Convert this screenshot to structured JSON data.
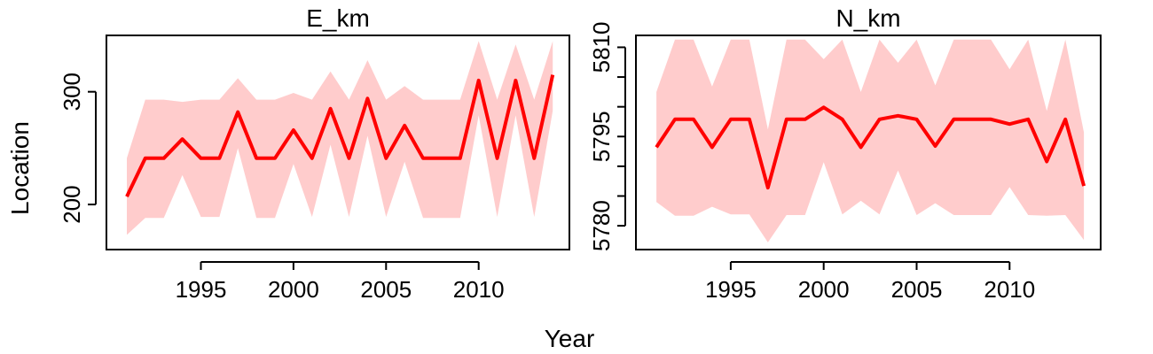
{
  "figure": {
    "xlabel": "Year",
    "ylabel": "Location"
  },
  "chart_data": [
    {
      "type": "line",
      "title": "E_km",
      "xlabel": "Year",
      "ylabel": "Location",
      "xlim": [
        1989.9,
        2014.9
      ],
      "ylim": [
        160,
        350
      ],
      "xticks": [
        1995,
        2000,
        2005,
        2010
      ],
      "yticks": [
        200,
        300
      ],
      "grid": false,
      "band_color": "#ffcccc",
      "line_color": "#ff0000",
      "x": [
        1991,
        1992,
        1993,
        1994,
        1995,
        1996,
        1997,
        1998,
        1999,
        2000,
        2001,
        2002,
        2003,
        2004,
        2005,
        2006,
        2007,
        2008,
        2009,
        2010,
        2011,
        2012,
        2013,
        2014
      ],
      "series": [
        {
          "values": [
            207,
            241,
            241,
            258,
            241,
            241,
            282,
            241,
            241,
            266,
            241,
            285,
            241,
            294,
            241,
            270,
            241,
            241,
            241,
            310,
            241,
            310,
            241,
            315
          ],
          "lower": [
            173,
            188,
            188,
            226,
            189,
            189,
            250,
            188,
            188,
            236,
            189,
            253,
            189,
            261,
            189,
            238,
            188,
            188,
            188,
            279,
            189,
            279,
            189,
            283
          ],
          "upper": [
            241,
            293,
            293,
            291,
            293,
            293,
            312,
            293,
            293,
            299,
            293,
            318,
            293,
            328,
            293,
            305,
            293,
            293,
            293,
            345,
            293,
            342,
            293,
            345
          ]
        }
      ]
    },
    {
      "type": "line",
      "title": "N_km",
      "xlabel": "Year",
      "ylabel": "Location",
      "xlim": [
        1989.9,
        2014.9
      ],
      "ylim": [
        5776,
        5812
      ],
      "xticks": [
        1995,
        2000,
        2005,
        2010
      ],
      "yticks": [
        5780,
        5795,
        5810
      ],
      "minor_yticks": [
        5785,
        5790,
        5800,
        5805
      ],
      "grid": false,
      "band_color": "#ffcccc",
      "line_color": "#ff0000",
      "x": [
        1991,
        1992,
        1993,
        1994,
        1995,
        1996,
        1997,
        1998,
        1999,
        2000,
        2001,
        2002,
        2003,
        2004,
        2005,
        2006,
        2007,
        2008,
        2009,
        2010,
        2011,
        2012,
        2013,
        2014
      ],
      "series": [
        {
          "values": [
            5793.2,
            5797.9,
            5797.9,
            5793.2,
            5797.9,
            5797.9,
            5786.4,
            5797.9,
            5797.9,
            5799.9,
            5797.9,
            5793.2,
            5797.9,
            5798.5,
            5797.9,
            5793.4,
            5797.9,
            5797.9,
            5797.9,
            5797.1,
            5797.9,
            5790.8,
            5797.9,
            5786.7
          ],
          "lower": [
            5784.0,
            5781.7,
            5781.7,
            5783.2,
            5781.9,
            5781.9,
            5777.2,
            5781.8,
            5781.8,
            5790.7,
            5781.9,
            5784.2,
            5781.9,
            5789.3,
            5781.8,
            5783.8,
            5781.8,
            5781.8,
            5781.8,
            5786.5,
            5781.8,
            5781.7,
            5781.8,
            5777.6
          ],
          "upper": [
            5802.5,
            5811.3,
            5811.3,
            5803.4,
            5811.3,
            5811.3,
            5796.2,
            5811.3,
            5811.3,
            5808.0,
            5811.3,
            5802.5,
            5811.3,
            5807.4,
            5811.3,
            5803.6,
            5811.3,
            5811.3,
            5811.3,
            5806.3,
            5811.3,
            5799.3,
            5811.3,
            5795.7
          ]
        }
      ]
    }
  ]
}
